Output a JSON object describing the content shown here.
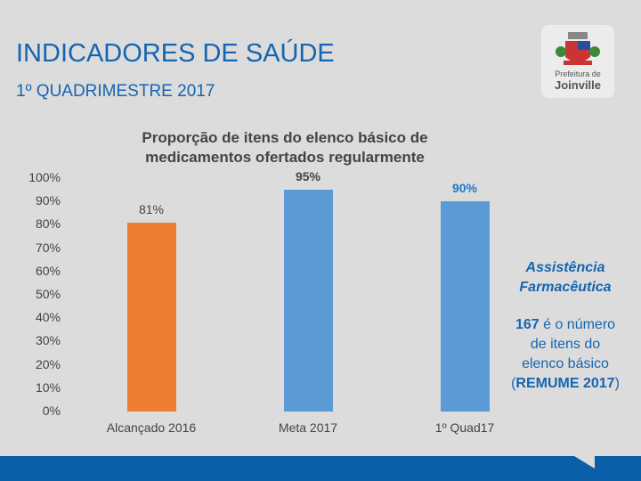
{
  "header": {
    "title": "INDICADORES DE SAÚDE",
    "subtitle": "1º QUADRIMESTRE 2017"
  },
  "logo": {
    "text": "Prefeitura de Joinville"
  },
  "side_note": {
    "heading1": "Assistência",
    "heading2": "Farmacêutica",
    "line1_bold": "167",
    "line1_rest": " é o número",
    "line2": "de itens do",
    "line3": "elenco básico",
    "line4_open": "(",
    "line4_bold": "REMUME 2017",
    "line4_close": ")"
  },
  "colors": {
    "orange": "#ed7d31",
    "blue": "#5b9bd5",
    "text_blue": "#1565b0"
  },
  "chart_data": {
    "type": "bar",
    "title_line1": "Proporção de itens do elenco básico de",
    "title_line2": "medicamentos ofertados regularmente",
    "categories": [
      "Alcançado 2016",
      "Meta 2017",
      "1º Quad17"
    ],
    "values": [
      81,
      95,
      90
    ],
    "value_labels": [
      "81%",
      "95%",
      "90%"
    ],
    "bar_colors": [
      "#ed7d31",
      "#5b9bd5",
      "#5b9bd5"
    ],
    "yticks": [
      "0%",
      "10%",
      "20%",
      "30%",
      "40%",
      "50%",
      "60%",
      "70%",
      "80%",
      "90%",
      "100%"
    ],
    "ylim": [
      0,
      100
    ],
    "xlabel": "",
    "ylabel": ""
  }
}
